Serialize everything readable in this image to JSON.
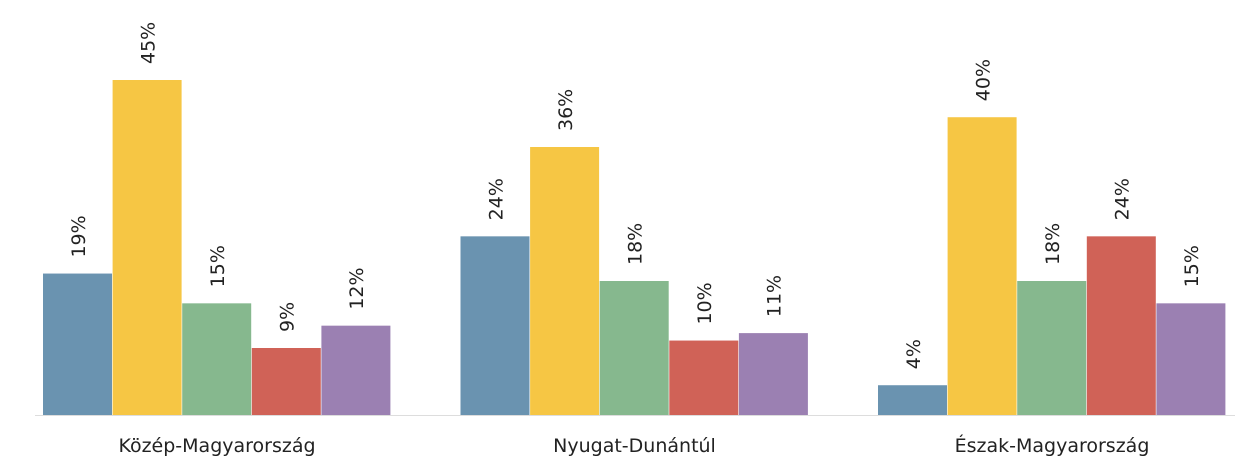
{
  "chart_data": {
    "type": "bar",
    "categories": [
      "Közép-Magyarország",
      "Nyugat-Dunántúl",
      "Észak-Magyarország"
    ],
    "series": [
      {
        "color": "#6a93b0",
        "values": [
          19,
          24,
          4
        ],
        "value_labels": [
          "19%",
          "24%",
          "4%"
        ]
      },
      {
        "color": "#f6c644",
        "values": [
          45,
          36,
          40
        ],
        "value_labels": [
          "45%",
          "36%",
          "40%"
        ]
      },
      {
        "color": "#86b88e",
        "values": [
          15,
          18,
          18
        ],
        "value_labels": [
          "15%",
          "18%",
          "18%"
        ]
      },
      {
        "color": "#d06257",
        "values": [
          9,
          10,
          24
        ],
        "value_labels": [
          "9%",
          "10%",
          "24%"
        ]
      },
      {
        "color": "#9b80b2",
        "values": [
          12,
          11,
          15
        ],
        "value_labels": [
          "12%",
          "11%",
          "15%"
        ]
      }
    ],
    "ylim": [
      0,
      45
    ]
  }
}
